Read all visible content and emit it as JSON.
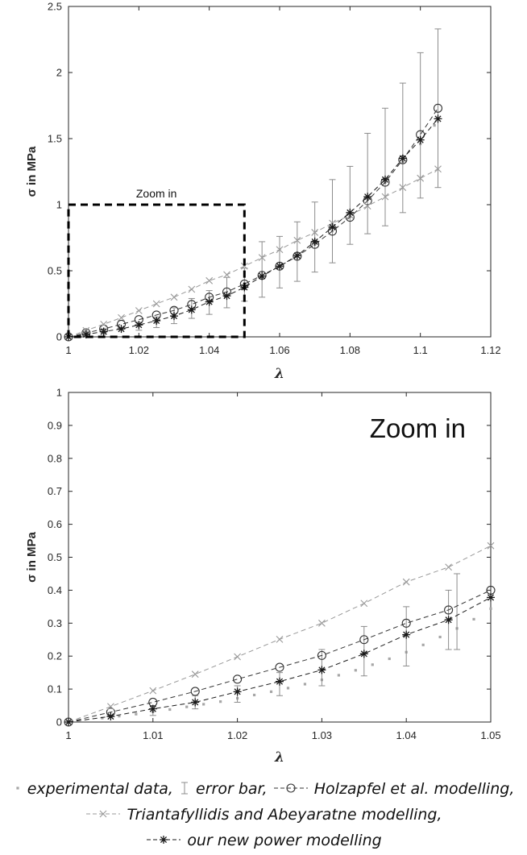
{
  "chart_data": [
    {
      "type": "line",
      "title": "",
      "xlabel": "λ",
      "ylabel": "σ in MPa",
      "xlim": [
        1,
        1.12
      ],
      "ylim": [
        0,
        2.5
      ],
      "xticks": [
        "1",
        "1.02",
        "1.04",
        "1.06",
        "1.08",
        "1.1",
        "1.12"
      ],
      "yticks": [
        "0",
        "0.5",
        "1",
        "1.5",
        "2",
        "2.5"
      ],
      "annotation": "Zoom in",
      "zoom_box": {
        "x": [
          1,
          1.05
        ],
        "y": [
          0,
          1
        ]
      },
      "series": [
        {
          "name": "experimental data",
          "marker": "dot",
          "x": [
            1,
            1.005,
            1.01,
            1.015,
            1.02,
            1.025,
            1.03,
            1.035,
            1.04,
            1.045,
            1.05,
            1.055,
            1.06,
            1.065,
            1.07,
            1.075,
            1.08,
            1.085,
            1.09,
            1.095,
            1.1,
            1.104
          ],
          "y": [
            0,
            0.02,
            0.035,
            0.06,
            0.085,
            0.11,
            0.15,
            0.2,
            0.26,
            0.31,
            0.38,
            0.45,
            0.53,
            0.61,
            0.7,
            0.8,
            0.91,
            1.04,
            1.17,
            1.32,
            1.46,
            1.6
          ]
        },
        {
          "name": "error bar",
          "marker": "errorbar",
          "x": [
            1.01,
            1.02,
            1.025,
            1.03,
            1.035,
            1.04,
            1.045,
            1.05,
            1.055,
            1.06,
            1.065,
            1.07,
            1.075,
            1.08,
            1.085,
            1.09,
            1.095,
            1.1,
            1.105
          ],
          "y": [
            0.04,
            0.08,
            0.11,
            0.15,
            0.2,
            0.26,
            0.33,
            0.38,
            0.46,
            0.53,
            0.61,
            0.73,
            0.84,
            0.95,
            1.06,
            1.2,
            1.34,
            1.5,
            1.73
          ],
          "low": [
            0.02,
            0.05,
            0.07,
            0.1,
            0.14,
            0.17,
            0.22,
            0.27,
            0.3,
            0.37,
            0.42,
            0.49,
            0.56,
            0.7,
            0.78,
            0.84,
            0.94,
            1.05,
            1.13
          ],
          "high": [
            0.06,
            0.11,
            0.15,
            0.22,
            0.29,
            0.35,
            0.45,
            0.52,
            0.72,
            0.76,
            0.87,
            1.02,
            1.19,
            1.29,
            1.54,
            1.73,
            1.92,
            2.15,
            2.33
          ]
        },
        {
          "name": "Holzapfel et al. modelling",
          "marker": "circle",
          "color": "#333333",
          "x": [
            1,
            1.005,
            1.01,
            1.015,
            1.02,
            1.025,
            1.03,
            1.035,
            1.04,
            1.045,
            1.05,
            1.055,
            1.06,
            1.065,
            1.07,
            1.075,
            1.08,
            1.085,
            1.09,
            1.095,
            1.1,
            1.105
          ],
          "y": [
            0,
            0.03,
            0.06,
            0.095,
            0.13,
            0.165,
            0.2,
            0.245,
            0.3,
            0.34,
            0.4,
            0.465,
            0.535,
            0.61,
            0.7,
            0.8,
            0.905,
            1.03,
            1.17,
            1.34,
            1.53,
            1.73
          ]
        },
        {
          "name": "Triantafyllidis and Abeyaratne modelling",
          "marker": "x",
          "color": "#999999",
          "x": [
            1,
            1.005,
            1.01,
            1.015,
            1.02,
            1.025,
            1.03,
            1.035,
            1.04,
            1.045,
            1.05,
            1.055,
            1.06,
            1.065,
            1.07,
            1.075,
            1.08,
            1.085,
            1.09,
            1.095,
            1.1,
            1.105
          ],
          "y": [
            0,
            0.048,
            0.095,
            0.145,
            0.198,
            0.25,
            0.3,
            0.36,
            0.425,
            0.47,
            0.535,
            0.6,
            0.66,
            0.73,
            0.79,
            0.86,
            0.92,
            0.99,
            1.06,
            1.13,
            1.2,
            1.27
          ]
        },
        {
          "name": "our new power modelling",
          "marker": "star",
          "color": "#1a1a1a",
          "x": [
            1,
            1.005,
            1.01,
            1.015,
            1.02,
            1.025,
            1.03,
            1.035,
            1.04,
            1.045,
            1.05,
            1.055,
            1.06,
            1.065,
            1.07,
            1.075,
            1.08,
            1.085,
            1.09,
            1.095,
            1.1,
            1.105
          ],
          "y": [
            0,
            0.018,
            0.04,
            0.06,
            0.09,
            0.122,
            0.158,
            0.205,
            0.265,
            0.31,
            0.375,
            0.46,
            0.535,
            0.615,
            0.72,
            0.83,
            0.94,
            1.06,
            1.19,
            1.35,
            1.49,
            1.65
          ]
        }
      ]
    },
    {
      "type": "line",
      "title": "",
      "xlabel": "λ",
      "ylabel": "σ in MPa",
      "xlim": [
        1,
        1.05
      ],
      "ylim": [
        0,
        1
      ],
      "xticks": [
        "1",
        "1.01",
        "1.02",
        "1.03",
        "1.04",
        "1.05"
      ],
      "yticks": [
        "0",
        "0.1",
        "0.2",
        "0.3",
        "0.4",
        "0.5",
        "0.6",
        "0.7",
        "0.8",
        "0.9",
        "1"
      ],
      "annotation": "Zoom in",
      "series": [
        {
          "name": "experimental data",
          "marker": "dot",
          "x": [
            1.004,
            1.006,
            1.008,
            1.01,
            1.012,
            1.014,
            1.016,
            1.018,
            1.02,
            1.022,
            1.024,
            1.026,
            1.028,
            1.03,
            1.032,
            1.034,
            1.036,
            1.038,
            1.04,
            1.042,
            1.044,
            1.046,
            1.048,
            1.05
          ],
          "y": [
            0.012,
            0.018,
            0.024,
            0.031,
            0.038,
            0.046,
            0.054,
            0.062,
            0.072,
            0.082,
            0.092,
            0.103,
            0.115,
            0.128,
            0.142,
            0.157,
            0.174,
            0.192,
            0.212,
            0.234,
            0.258,
            0.284,
            0.312,
            0.344
          ]
        },
        {
          "name": "error bar",
          "marker": "errorbar",
          "x": [
            1.01,
            1.015,
            1.02,
            1.025,
            1.03,
            1.035,
            1.04,
            1.045,
            1.046
          ],
          "y": [
            0.04,
            0.06,
            0.08,
            0.11,
            0.16,
            0.22,
            0.26,
            0.3,
            0.34
          ],
          "low": [
            0.02,
            0.04,
            0.06,
            0.08,
            0.11,
            0.14,
            0.17,
            0.22,
            0.22
          ],
          "high": [
            0.05,
            0.08,
            0.11,
            0.15,
            0.22,
            0.29,
            0.35,
            0.4,
            0.45
          ]
        },
        {
          "name": "Holzapfel et al. modelling",
          "marker": "circle",
          "color": "#333333",
          "x": [
            1,
            1.005,
            1.01,
            1.015,
            1.02,
            1.025,
            1.03,
            1.035,
            1.04,
            1.045,
            1.05
          ],
          "y": [
            0,
            0.03,
            0.06,
            0.093,
            0.13,
            0.166,
            0.202,
            0.25,
            0.3,
            0.34,
            0.4
          ]
        },
        {
          "name": "Triantafyllidis and Abeyaratne modelling",
          "marker": "x",
          "color": "#999999",
          "x": [
            1,
            1.005,
            1.01,
            1.015,
            1.02,
            1.025,
            1.03,
            1.035,
            1.04,
            1.045,
            1.05
          ],
          "y": [
            0,
            0.047,
            0.095,
            0.145,
            0.198,
            0.251,
            0.3,
            0.36,
            0.425,
            0.47,
            0.535
          ]
        },
        {
          "name": "our new power modelling",
          "marker": "star",
          "color": "#1a1a1a",
          "x": [
            1,
            1.005,
            1.01,
            1.015,
            1.02,
            1.025,
            1.03,
            1.035,
            1.04,
            1.045,
            1.05
          ],
          "y": [
            0,
            0.017,
            0.04,
            0.06,
            0.092,
            0.123,
            0.158,
            0.207,
            0.265,
            0.31,
            0.378
          ]
        }
      ]
    }
  ],
  "legend": {
    "items": [
      {
        "symbol": "dot",
        "text": "experimental data,"
      },
      {
        "symbol": "errorbar",
        "text": "error bar,"
      },
      {
        "symbol": "circle",
        "text": "Holzapfel et al. modelling,"
      },
      {
        "symbol": "x",
        "text": "Triantafyllidis and Abeyaratne modelling,"
      },
      {
        "symbol": "star",
        "text": "our new power modelling"
      }
    ]
  }
}
